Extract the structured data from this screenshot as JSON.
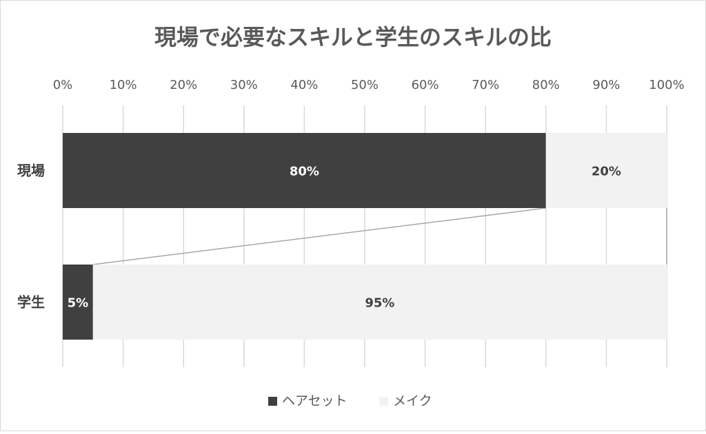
{
  "chart_data": {
    "type": "bar",
    "orientation": "horizontal",
    "stacked": "percent",
    "title": "現場で必要なスキルと学生のスキルの比",
    "categories": [
      "現場",
      "学生"
    ],
    "series": [
      {
        "name": "ヘアセット",
        "values": [
          80,
          5
        ],
        "labels": [
          "80%",
          "5%"
        ],
        "color": "#404040",
        "label_color": "#ffffff"
      },
      {
        "name": "メイク",
        "values": [
          20,
          95
        ],
        "labels": [
          "20%",
          "95%"
        ],
        "color": "#f2f2f2",
        "label_color": "#404040"
      }
    ],
    "xlim": [
      0,
      100
    ],
    "ticks": [
      "0%",
      "10%",
      "20%",
      "30%",
      "40%",
      "50%",
      "60%",
      "70%",
      "80%",
      "90%",
      "100%"
    ],
    "grid": true,
    "series_lines": true,
    "legend": "bottom"
  }
}
